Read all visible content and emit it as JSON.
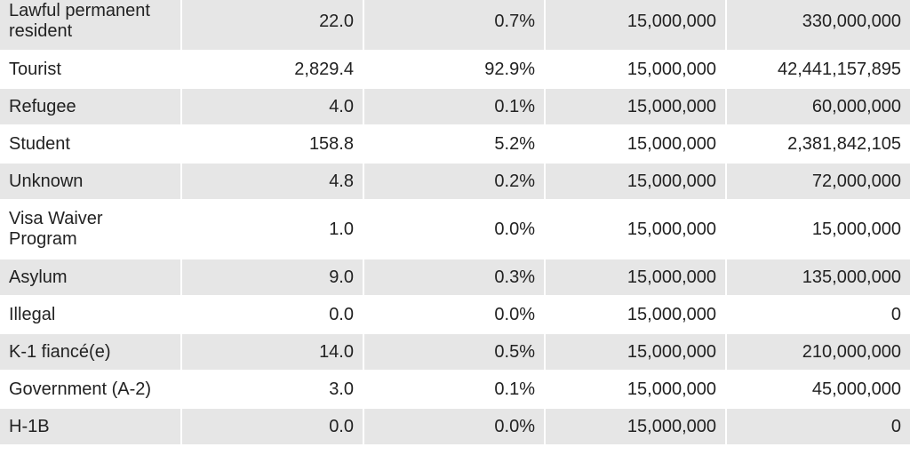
{
  "table": {
    "rows": [
      [
        "Lawful permanent resident",
        "22.0",
        "0.7%",
        "15,000,000",
        "330,000,000"
      ],
      [
        "Tourist",
        "2,829.4",
        "92.9%",
        "15,000,000",
        "42,441,157,895"
      ],
      [
        "Refugee",
        "4.0",
        "0.1%",
        "15,000,000",
        "60,000,000"
      ],
      [
        "Student",
        "158.8",
        "5.2%",
        "15,000,000",
        "2,381,842,105"
      ],
      [
        "Unknown",
        "4.8",
        "0.2%",
        "15,000,000",
        "72,000,000"
      ],
      [
        "Visa Waiver Program",
        "1.0",
        "0.0%",
        "15,000,000",
        "15,000,000"
      ],
      [
        "Asylum",
        "9.0",
        "0.3%",
        "15,000,000",
        "135,000,000"
      ],
      [
        "Illegal",
        "0.0",
        "0.0%",
        "15,000,000",
        "0"
      ],
      [
        "K-1 fiancé(e)",
        "14.0",
        "0.5%",
        "15,000,000",
        "210,000,000"
      ],
      [
        "Government (A-2)",
        "3.0",
        "0.1%",
        "15,000,000",
        "45,000,000"
      ],
      [
        "H-1B",
        "0.0",
        "0.0%",
        "15,000,000",
        "0"
      ]
    ]
  }
}
